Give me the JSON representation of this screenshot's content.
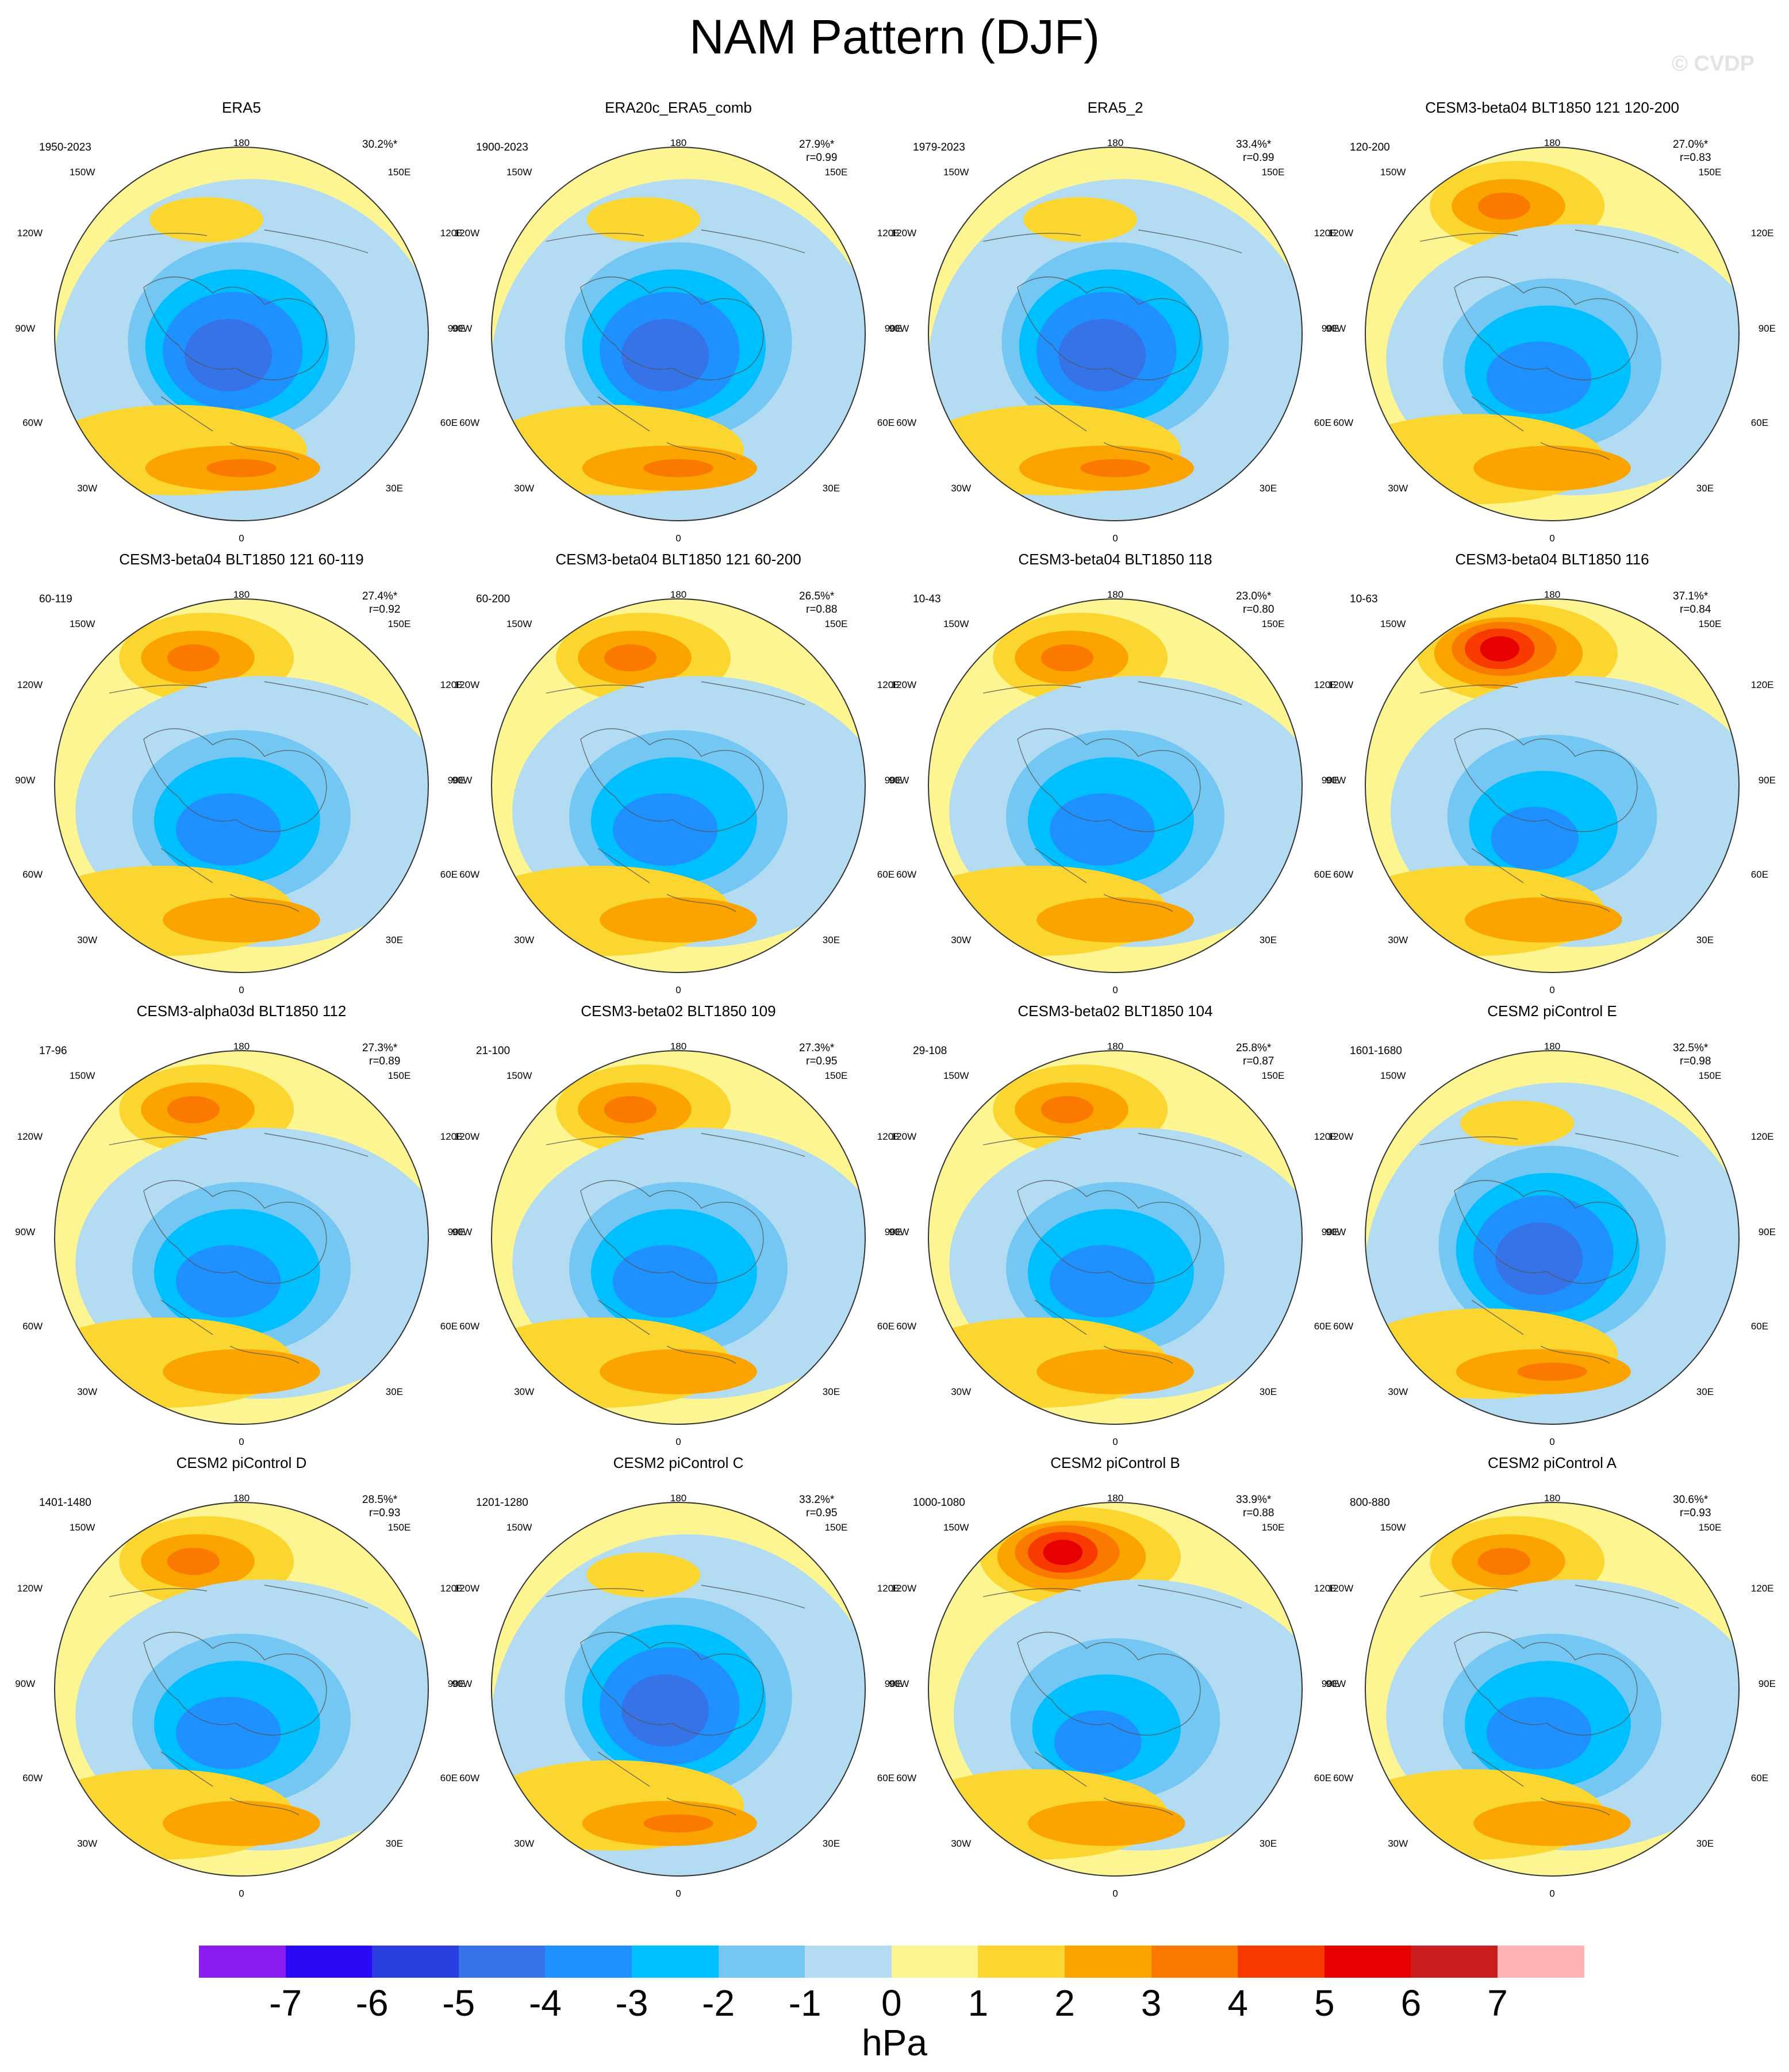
{
  "title": "NAM Pattern (DJF)",
  "watermark": "© CVDP",
  "lon_labels": {
    "top": "180",
    "bottom": "0",
    "w150": "150W",
    "w120": "120W",
    "w90": "90W",
    "w60": "60W",
    "w30": "30W",
    "e150": "150E",
    "e120": "120E",
    "e90": "90E",
    "e60": "60E",
    "e30": "30E"
  },
  "panels": [
    {
      "title": "ERA5",
      "years": "1950-2023",
      "pct": "30.2%*",
      "r": "",
      "pattern": "obs"
    },
    {
      "title": "ERA20c_ERA5_comb",
      "years": "1900-2023",
      "pct": "27.9%*",
      "r": "r=0.99",
      "pattern": "obs"
    },
    {
      "title": "ERA5_2",
      "years": "1979-2023",
      "pct": "33.4%*",
      "r": "r=0.99",
      "pattern": "obs"
    },
    {
      "title": "CESM3-beta04 BLT1850 121 120-200",
      "years": "120-200",
      "pct": "27.0%*",
      "r": "r=0.83",
      "pattern": "model"
    },
    {
      "title": "CESM3-beta04 BLT1850 121 60-119",
      "years": "60-119",
      "pct": "27.4%*",
      "r": "r=0.92",
      "pattern": "model"
    },
    {
      "title": "CESM3-beta04 BLT1850 121 60-200",
      "years": "60-200",
      "pct": "26.5%*",
      "r": "r=0.88",
      "pattern": "model"
    },
    {
      "title": "CESM3-beta04 BLT1850 118",
      "years": "10-43",
      "pct": "23.0%*",
      "r": "r=0.80",
      "pattern": "model"
    },
    {
      "title": "CESM3-beta04 BLT1850 116",
      "years": "10-63",
      "pct": "37.1%*",
      "r": "r=0.84",
      "pattern": "strong"
    },
    {
      "title": "CESM3-alpha03d BLT1850 112",
      "years": "17-96",
      "pct": "27.3%*",
      "r": "r=0.89",
      "pattern": "model"
    },
    {
      "title": "CESM3-beta02 BLT1850 109",
      "years": "21-100",
      "pct": "27.3%*",
      "r": "r=0.95",
      "pattern": "model"
    },
    {
      "title": "CESM3-beta02 BLT1850 104",
      "years": "29-108",
      "pct": "25.8%*",
      "r": "r=0.87",
      "pattern": "model"
    },
    {
      "title": "CESM2 piControl E",
      "years": "1601-1680",
      "pct": "32.5%*",
      "r": "r=0.98",
      "pattern": "obs"
    },
    {
      "title": "CESM2 piControl D",
      "years": "1401-1480",
      "pct": "28.5%*",
      "r": "r=0.93",
      "pattern": "model"
    },
    {
      "title": "CESM2 piControl C",
      "years": "1201-1280",
      "pct": "33.2%*",
      "r": "r=0.95",
      "pattern": "obs"
    },
    {
      "title": "CESM2 piControl B",
      "years": "1000-1080",
      "pct": "33.9%*",
      "r": "r=0.88",
      "pattern": "strong"
    },
    {
      "title": "CESM2 piControl A",
      "years": "800-880",
      "pct": "30.6%*",
      "r": "r=0.93",
      "pattern": "model"
    }
  ],
  "colorbar": {
    "units": "hPa",
    "ticks": [
      "-7",
      "-6",
      "-5",
      "-4",
      "-3",
      "-2",
      "-1",
      "0",
      "1",
      "2",
      "3",
      "4",
      "5",
      "6",
      "7"
    ],
    "colors": [
      "#8a1cf0",
      "#2a0af5",
      "#2b3fe0",
      "#3573e6",
      "#1e90ff",
      "#00bfff",
      "#73c7f2",
      "#b3dcf2",
      "#fdf591",
      "#fcd630",
      "#fba400",
      "#fa7a00",
      "#f93a00",
      "#e60000",
      "#c81e1e",
      "#ffb3b3"
    ]
  }
}
